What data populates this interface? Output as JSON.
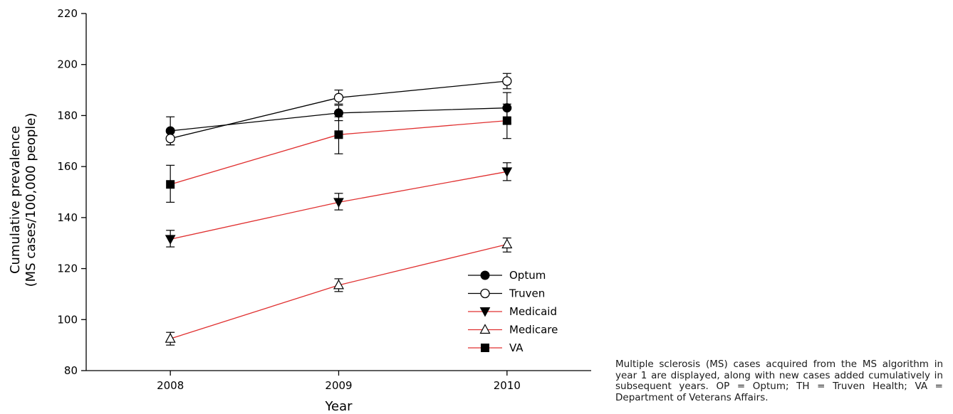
{
  "chart_data": {
    "type": "line",
    "x": [
      2008,
      2009,
      2010
    ],
    "xlabel": "Year",
    "ylabel_lines": [
      "Cumulative prevalence",
      "(MS cases/100,000 people)"
    ],
    "ylim": [
      80,
      220
    ],
    "yticks": [
      80,
      100,
      120,
      140,
      160,
      180,
      200,
      220
    ],
    "xlim": [
      2007.5,
      2010.5
    ],
    "legend_position": "bottom-right",
    "series": [
      {
        "name": "Optum",
        "color": "#000000",
        "marker": "filled-circle",
        "values": [
          174.0,
          181.0,
          183.0
        ],
        "err_low": [
          168.5,
          178.0,
          177.0
        ],
        "err_high": [
          179.5,
          184.0,
          189.0
        ]
      },
      {
        "name": "Truven",
        "color": "#000000",
        "marker": "open-circle",
        "values": [
          171.0,
          187.0,
          193.5
        ],
        "err_low": [
          168.5,
          184.5,
          190.5
        ],
        "err_high": [
          173.5,
          190.0,
          196.5
        ]
      },
      {
        "name": "Medicaid",
        "color": "#e03030",
        "marker": "filled-triangle-down",
        "values": [
          131.5,
          146.0,
          158.0
        ],
        "err_low": [
          128.5,
          143.0,
          154.5
        ],
        "err_high": [
          135.0,
          149.5,
          161.5
        ]
      },
      {
        "name": "Medicare",
        "color": "#e03030",
        "marker": "open-triangle-up",
        "values": [
          92.5,
          113.5,
          129.5
        ],
        "err_low": [
          90.0,
          111.0,
          126.5
        ],
        "err_high": [
          95.0,
          116.0,
          132.0
        ]
      },
      {
        "name": "VA",
        "color": "#e03030",
        "marker": "filled-square",
        "values": [
          153.0,
          172.5,
          178.0
        ],
        "err_low": [
          146.0,
          165.0,
          171.0
        ],
        "err_high": [
          160.5,
          179.5,
          184.5
        ]
      }
    ]
  },
  "caption": "Multiple sclerosis (MS) cases acquired from the MS algorithm in year 1 are displayed, along with new cases added cumulatively in subsequent years. OP = Optum; TH = Truven Health; VA = Department of Veterans Affairs."
}
